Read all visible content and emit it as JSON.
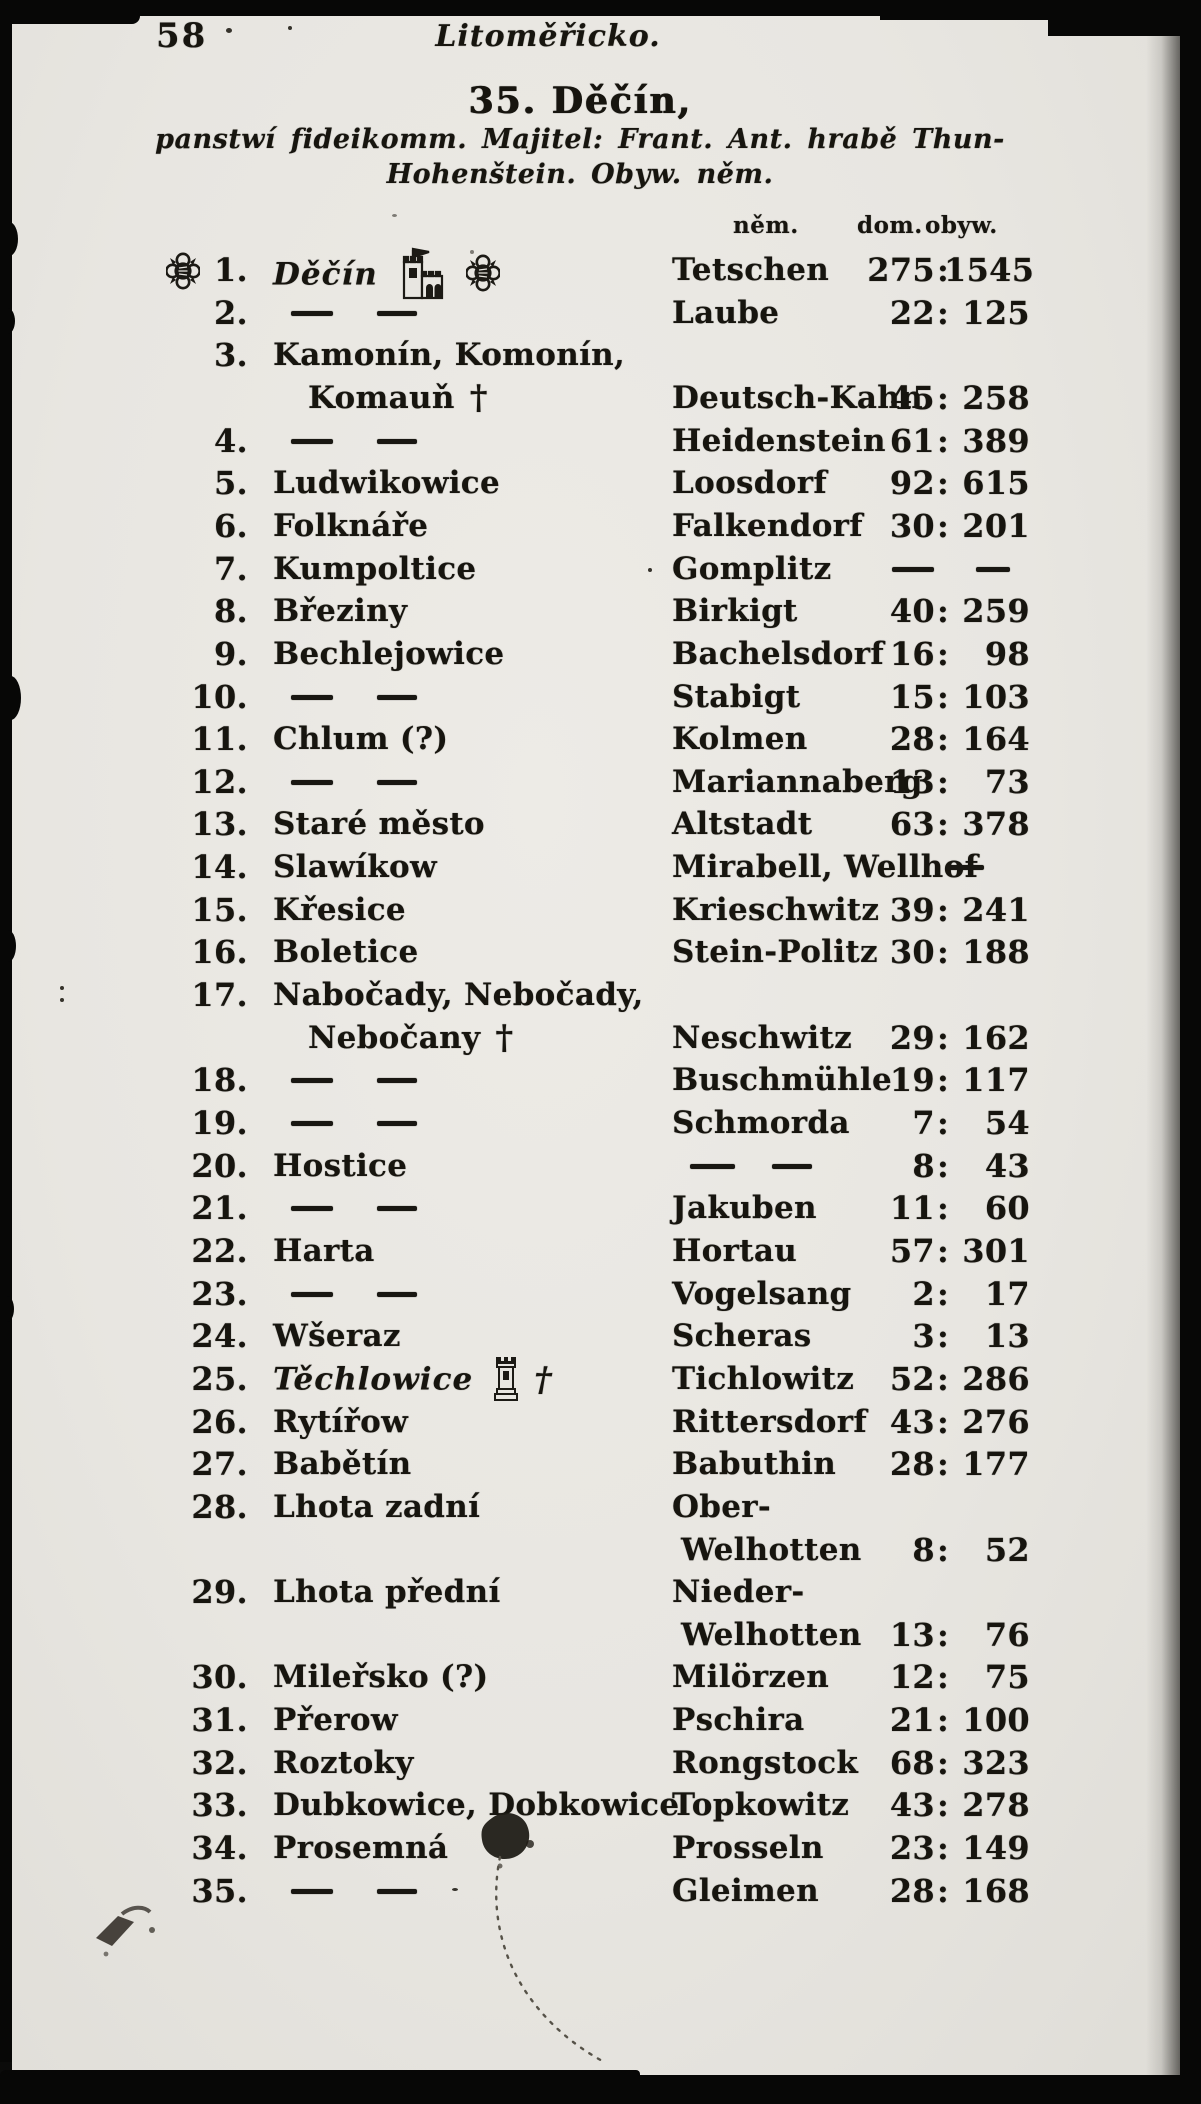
{
  "meta": {
    "page_number": "58",
    "region_title": "Litoměřicko."
  },
  "heading": {
    "entry_title": "35. Děčín,",
    "subtitle_line1": "panstwí fideikomm. Majitel: Frant. Ant. hrabě Thun-",
    "subtitle_line2": "Hohenštein. Obyw. něm."
  },
  "columns": {
    "nem": "něm.",
    "dom": "dom.",
    "obyw": "obyw."
  },
  "lines": [
    {
      "n": "1.",
      "cz": "Děčín",
      "it": true,
      "pre": "rosette",
      "icons": [
        "castle",
        "rosette"
      ],
      "de": "Tetschen",
      "dom": "275",
      "obyw": "1545"
    },
    {
      "n": "2.",
      "czdash": true,
      "de": "Laube",
      "dom": "22",
      "obyw": "125"
    },
    {
      "n": "3.",
      "cz": "Kamonín, Komonín,"
    },
    {
      "cz": "Komauň",
      "ind": true,
      "cross": true,
      "de": "Deutsch-Kahn",
      "dom": "45",
      "obyw": "258"
    },
    {
      "n": "4.",
      "czdash": true,
      "de": "Heidenstein",
      "dom": "61",
      "obyw": "389"
    },
    {
      "n": "5.",
      "cz": "Ludwikowice",
      "de": "Loosdorf",
      "dom": "92",
      "obyw": "615"
    },
    {
      "n": "6.",
      "cz": "Folknáře",
      "de": "Falkendorf",
      "dom": "30",
      "obyw": "201"
    },
    {
      "n": "7.",
      "cz": "Kumpoltice",
      "de": "Gomplitz",
      "ndash": true
    },
    {
      "n": "8.",
      "cz": "Březiny",
      "de": "Birkigt",
      "dom": "40",
      "obyw": "259"
    },
    {
      "n": "9.",
      "cz": "Bechlejowice",
      "de": "Bachelsdorf",
      "dom": "16",
      "obyw": "98"
    },
    {
      "n": "10.",
      "czdash": true,
      "de": "Stabigt",
      "dom": "15",
      "obyw": "103"
    },
    {
      "n": "11.",
      "cz": "Chlum (?)",
      "de": "Kolmen",
      "dom": "28",
      "obyw": "164"
    },
    {
      "n": "12.",
      "czdash": true,
      "de": "Mariannaberg",
      "dom": "13",
      "obyw": "73"
    },
    {
      "n": "13.",
      "cz": "Staré město",
      "de": "Altstadt",
      "dom": "63",
      "obyw": "378"
    },
    {
      "n": "14.",
      "cz": "Slawíkow",
      "de": "Mirabell, Wellhof",
      "nsingle": true
    },
    {
      "n": "15.",
      "cz": "Křesice",
      "de": "Krieschwitz",
      "dom": "39",
      "obyw": "241"
    },
    {
      "n": "16.",
      "cz": "Boletice",
      "de": "Stein-Politz",
      "dom": "30",
      "obyw": "188"
    },
    {
      "n": "17.",
      "cz": "Nabočady, Nebočady,"
    },
    {
      "cz": "Nebočany",
      "ind": true,
      "cross": true,
      "de": "Neschwitz",
      "dom": "29",
      "obyw": "162"
    },
    {
      "n": "18.",
      "czdash": true,
      "de": "Buschmühle",
      "dom": "19",
      "obyw": "117"
    },
    {
      "n": "19.",
      "czdash": true,
      "de": "Schmorda",
      "dom": "7",
      "obyw": "54"
    },
    {
      "n": "20.",
      "cz": "Hostice",
      "dedash": true,
      "dom": "8",
      "obyw": "43"
    },
    {
      "n": "21.",
      "czdash": true,
      "de": "Jakuben",
      "dom": "11",
      "obyw": "60"
    },
    {
      "n": "22.",
      "cz": "Harta",
      "de": "Hortau",
      "dom": "57",
      "obyw": "301"
    },
    {
      "n": "23.",
      "czdash": true,
      "de": "Vogelsang",
      "dom": "2",
      "obyw": "17"
    },
    {
      "n": "24.",
      "cz": "Wšeraz",
      "de": "Scheras",
      "dom": "3",
      "obyw": "13"
    },
    {
      "n": "25.",
      "cz": "Těchlowice",
      "it": true,
      "icons": [
        "tower"
      ],
      "cross": true,
      "de": "Tichlowitz",
      "dom": "52",
      "obyw": "286"
    },
    {
      "n": "26.",
      "cz": "Rytířow",
      "de": "Rittersdorf",
      "dom": "43",
      "obyw": "276"
    },
    {
      "n": "27.",
      "cz": "Babětín",
      "de": "Babuthin",
      "dom": "28",
      "obyw": "177"
    },
    {
      "n": "28.",
      "cz": "Lhota zadní",
      "de": "Ober-"
    },
    {
      "de": "Welhotten",
      "deind": true,
      "dom": "8",
      "obyw": "52"
    },
    {
      "n": "29.",
      "cz": "Lhota přední",
      "de": "Nieder-"
    },
    {
      "de": "Welhotten",
      "deind": true,
      "dom": "13",
      "obyw": "76"
    },
    {
      "n": "30.",
      "cz": "Mileřsko (?)",
      "de": "Milörzen",
      "dom": "12",
      "obyw": "75"
    },
    {
      "n": "31.",
      "cz": "Přerow",
      "de": "Pschira",
      "dom": "21",
      "obyw": "100"
    },
    {
      "n": "32.",
      "cz": "Roztoky",
      "de": "Rongstock",
      "dom": "68",
      "obyw": "323"
    },
    {
      "n": "33.",
      "cz": "Dubkowice, Dobkowice",
      "de": "Topkowitz",
      "dom": "43",
      "obyw": "278"
    },
    {
      "n": "34.",
      "cz": "Prosemná",
      "de": "Prosseln",
      "dom": "23",
      "obyw": "149"
    },
    {
      "n": "35.",
      "czdash": true,
      "de": "Gleimen",
      "dom": "28",
      "obyw": "168"
    }
  ],
  "colors": {
    "paper": "#e8e6e1",
    "ink": "#17150f",
    "scan_background": "#070706"
  }
}
